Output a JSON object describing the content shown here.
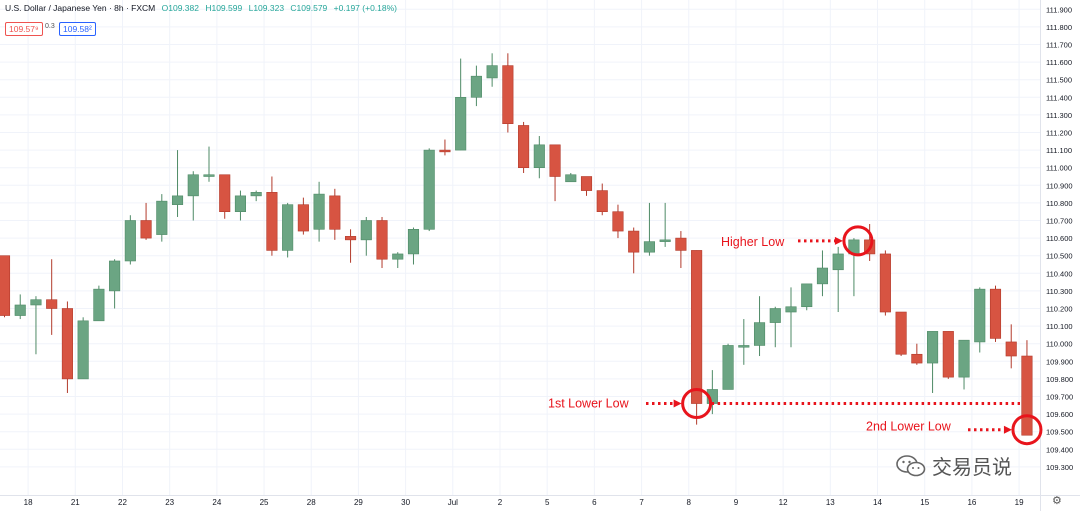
{
  "header": {
    "symbol": "U.S. Dollar / Japanese Yen · 8h · FXCM",
    "open": "O109.382",
    "high": "H109.599",
    "low": "L109.323",
    "close": "C109.579",
    "change": "+0.197 (+0.18%)"
  },
  "trade": {
    "sell": "109.57⁹",
    "spread": "0.3",
    "buy": "109.58²"
  },
  "watermark": {
    "text": "交易员说",
    "icon": "wechat-icon"
  },
  "settings_icon": "gear-icon",
  "colors": {
    "up": "#6ba583",
    "down": "#d75442",
    "annotation": "#e8141c"
  },
  "chart_data": {
    "type": "candlestick",
    "title": "",
    "ylim": [
      109.3,
      111.9
    ],
    "yticks": [
      "111.900",
      "111.800",
      "111.700",
      "111.600",
      "111.500",
      "111.400",
      "111.300",
      "111.200",
      "111.100",
      "111.000",
      "110.900",
      "110.800",
      "110.700",
      "110.600",
      "110.500",
      "110.400",
      "110.300",
      "110.200",
      "110.100",
      "110.000",
      "109.900",
      "109.800",
      "109.700",
      "109.600",
      "109.500",
      "109.400",
      "109.300"
    ],
    "xticks": [
      {
        "label": "18",
        "i": 1.5
      },
      {
        "label": "21",
        "i": 4.5
      },
      {
        "label": "22",
        "i": 7.5
      },
      {
        "label": "23",
        "i": 10.5
      },
      {
        "label": "24",
        "i": 13.5
      },
      {
        "label": "25",
        "i": 16.5
      },
      {
        "label": "28",
        "i": 19.5
      },
      {
        "label": "29",
        "i": 22.5
      },
      {
        "label": "30",
        "i": 25.5
      },
      {
        "label": "Jul",
        "i": 28.5
      },
      {
        "label": "2",
        "i": 31.5
      },
      {
        "label": "5",
        "i": 34.5
      },
      {
        "label": "6",
        "i": 37.5
      },
      {
        "label": "7",
        "i": 40.5
      },
      {
        "label": "8",
        "i": 43.5
      },
      {
        "label": "9",
        "i": 46.5
      },
      {
        "label": "12",
        "i": 49.5
      },
      {
        "label": "13",
        "i": 52.5
      },
      {
        "label": "14",
        "i": 55.5
      },
      {
        "label": "15",
        "i": 58.5
      },
      {
        "label": "16",
        "i": 61.5
      },
      {
        "label": "19",
        "i": 64.5
      }
    ],
    "candles": [
      {
        "o": 110.5,
        "h": 110.5,
        "l": 110.15,
        "c": 110.16
      },
      {
        "o": 110.16,
        "h": 110.28,
        "l": 110.14,
        "c": 110.22
      },
      {
        "o": 110.22,
        "h": 110.27,
        "l": 109.94,
        "c": 110.25
      },
      {
        "o": 110.25,
        "h": 110.48,
        "l": 110.05,
        "c": 110.2
      },
      {
        "o": 110.2,
        "h": 110.24,
        "l": 109.72,
        "c": 109.8
      },
      {
        "o": 109.8,
        "h": 110.15,
        "l": 109.8,
        "c": 110.13
      },
      {
        "o": 110.13,
        "h": 110.33,
        "l": 110.13,
        "c": 110.31
      },
      {
        "o": 110.3,
        "h": 110.48,
        "l": 110.2,
        "c": 110.47
      },
      {
        "o": 110.47,
        "h": 110.73,
        "l": 110.45,
        "c": 110.7
      },
      {
        "o": 110.7,
        "h": 110.8,
        "l": 110.59,
        "c": 110.6
      },
      {
        "o": 110.62,
        "h": 110.85,
        "l": 110.58,
        "c": 110.81
      },
      {
        "o": 110.79,
        "h": 111.1,
        "l": 110.72,
        "c": 110.84
      },
      {
        "o": 110.84,
        "h": 110.98,
        "l": 110.7,
        "c": 110.96
      },
      {
        "o": 110.95,
        "h": 111.12,
        "l": 110.92,
        "c": 110.96
      },
      {
        "o": 110.96,
        "h": 110.96,
        "l": 110.71,
        "c": 110.75
      },
      {
        "o": 110.75,
        "h": 110.87,
        "l": 110.7,
        "c": 110.84
      },
      {
        "o": 110.84,
        "h": 110.87,
        "l": 110.81,
        "c": 110.86
      },
      {
        "o": 110.86,
        "h": 110.95,
        "l": 110.5,
        "c": 110.53
      },
      {
        "o": 110.53,
        "h": 110.8,
        "l": 110.49,
        "c": 110.79
      },
      {
        "o": 110.79,
        "h": 110.83,
        "l": 110.62,
        "c": 110.64
      },
      {
        "o": 110.65,
        "h": 110.92,
        "l": 110.58,
        "c": 110.85
      },
      {
        "o": 110.84,
        "h": 110.88,
        "l": 110.59,
        "c": 110.65
      },
      {
        "o": 110.61,
        "h": 110.65,
        "l": 110.46,
        "c": 110.59
      },
      {
        "o": 110.59,
        "h": 110.72,
        "l": 110.5,
        "c": 110.7
      },
      {
        "o": 110.7,
        "h": 110.72,
        "l": 110.43,
        "c": 110.48
      },
      {
        "o": 110.48,
        "h": 110.52,
        "l": 110.43,
        "c": 110.51
      },
      {
        "o": 110.51,
        "h": 110.66,
        "l": 110.45,
        "c": 110.65
      },
      {
        "o": 110.65,
        "h": 111.11,
        "l": 110.64,
        "c": 111.1
      },
      {
        "o": 111.1,
        "h": 111.16,
        "l": 111.07,
        "c": 111.09
      },
      {
        "o": 111.1,
        "h": 111.62,
        "l": 111.1,
        "c": 111.4
      },
      {
        "o": 111.4,
        "h": 111.58,
        "l": 111.35,
        "c": 111.52
      },
      {
        "o": 111.51,
        "h": 111.65,
        "l": 111.46,
        "c": 111.58
      },
      {
        "o": 111.58,
        "h": 111.65,
        "l": 111.2,
        "c": 111.25
      },
      {
        "o": 111.24,
        "h": 111.26,
        "l": 110.97,
        "c": 111.0
      },
      {
        "o": 111.0,
        "h": 111.18,
        "l": 110.94,
        "c": 111.13
      },
      {
        "o": 111.13,
        "h": 111.13,
        "l": 110.81,
        "c": 110.95
      },
      {
        "o": 110.92,
        "h": 110.97,
        "l": 110.92,
        "c": 110.96
      },
      {
        "o": 110.95,
        "h": 110.95,
        "l": 110.84,
        "c": 110.87
      },
      {
        "o": 110.87,
        "h": 110.91,
        "l": 110.73,
        "c": 110.75
      },
      {
        "o": 110.75,
        "h": 110.79,
        "l": 110.6,
        "c": 110.64
      },
      {
        "o": 110.64,
        "h": 110.66,
        "l": 110.4,
        "c": 110.52
      },
      {
        "o": 110.52,
        "h": 110.8,
        "l": 110.5,
        "c": 110.58
      },
      {
        "o": 110.58,
        "h": 110.8,
        "l": 110.55,
        "c": 110.59
      },
      {
        "o": 110.6,
        "h": 110.64,
        "l": 110.43,
        "c": 110.53
      },
      {
        "o": 110.53,
        "h": 110.53,
        "l": 109.54,
        "c": 109.66
      },
      {
        "o": 109.66,
        "h": 109.85,
        "l": 109.6,
        "c": 109.74
      },
      {
        "o": 109.74,
        "h": 110.0,
        "l": 109.74,
        "c": 109.99
      },
      {
        "o": 109.98,
        "h": 110.14,
        "l": 109.88,
        "c": 109.99
      },
      {
        "o": 109.99,
        "h": 110.27,
        "l": 109.93,
        "c": 110.12
      },
      {
        "o": 110.12,
        "h": 110.21,
        "l": 109.98,
        "c": 110.2
      },
      {
        "o": 110.18,
        "h": 110.32,
        "l": 109.98,
        "c": 110.21
      },
      {
        "o": 110.21,
        "h": 110.34,
        "l": 110.19,
        "c": 110.34
      },
      {
        "o": 110.34,
        "h": 110.53,
        "l": 110.27,
        "c": 110.43
      },
      {
        "o": 110.42,
        "h": 110.55,
        "l": 110.18,
        "c": 110.51
      },
      {
        "o": 110.51,
        "h": 110.6,
        "l": 110.27,
        "c": 110.59
      },
      {
        "o": 110.59,
        "h": 110.68,
        "l": 110.47,
        "c": 110.51
      },
      {
        "o": 110.51,
        "h": 110.53,
        "l": 110.16,
        "c": 110.18
      },
      {
        "o": 110.18,
        "h": 110.18,
        "l": 109.93,
        "c": 109.94
      },
      {
        "o": 109.94,
        "h": 110.0,
        "l": 109.88,
        "c": 109.89
      },
      {
        "o": 109.89,
        "h": 110.07,
        "l": 109.72,
        "c": 110.07
      },
      {
        "o": 110.07,
        "h": 110.07,
        "l": 109.8,
        "c": 109.81
      },
      {
        "o": 109.81,
        "h": 110.02,
        "l": 109.74,
        "c": 110.02
      },
      {
        "o": 110.01,
        "h": 110.32,
        "l": 109.95,
        "c": 110.31
      },
      {
        "o": 110.31,
        "h": 110.33,
        "l": 110.01,
        "c": 110.03
      },
      {
        "o": 110.01,
        "h": 110.11,
        "l": 109.86,
        "c": 109.93
      },
      {
        "o": 109.93,
        "h": 110.02,
        "l": 109.48,
        "c": 109.48
      }
    ],
    "annotations": [
      {
        "label": "Higher Low",
        "candle": 54,
        "price": 110.59
      },
      {
        "label": "1st Lower Low",
        "candle": 44,
        "price": 109.66
      },
      {
        "label": "2nd Lower Low",
        "candle": 65,
        "price": 109.5
      }
    ]
  }
}
